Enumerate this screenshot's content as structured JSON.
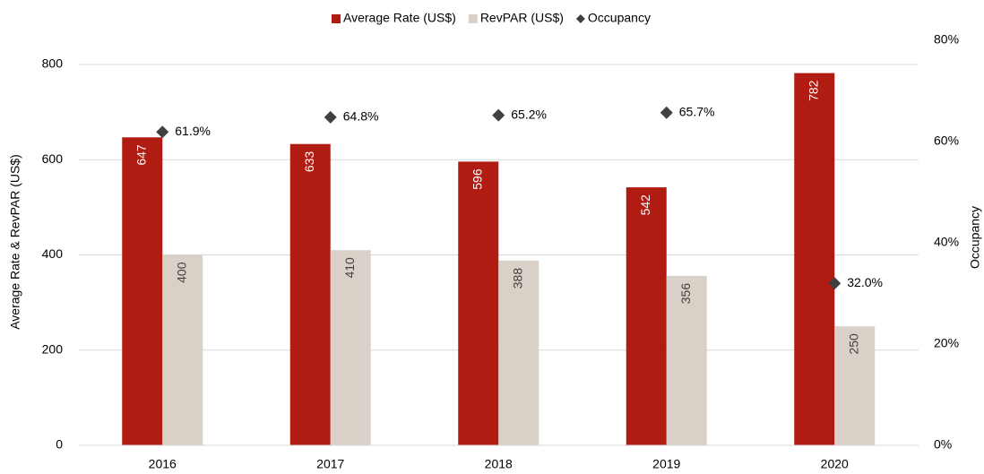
{
  "chart_data": {
    "type": "bar",
    "categories": [
      "2016",
      "2017",
      "2018",
      "2019",
      "2020"
    ],
    "series": [
      {
        "name": "Average Rate (US$)",
        "color": "#b01c12",
        "values": [
          647,
          633,
          596,
          542,
          782
        ]
      },
      {
        "name": "RevPAR (US$)",
        "color": "#d9d0c7",
        "values": [
          400,
          410,
          388,
          356,
          250
        ]
      },
      {
        "name": "Occupancy",
        "color": "#404040",
        "type": "scatter",
        "axis": "y2",
        "values": [
          61.9,
          64.8,
          65.2,
          65.7,
          32.0
        ],
        "value_labels": [
          "61.9%",
          "64.8%",
          "65.2%",
          "65.7%",
          "32.0%"
        ]
      }
    ],
    "ylabel": "Average Rate & RevPAR (US$)",
    "y2label": "Occupancy",
    "ylim": [
      0,
      800
    ],
    "yticks": [
      0,
      200,
      400,
      600,
      800
    ],
    "y2lim": [
      0,
      80
    ],
    "y2ticks": [
      {
        "value": 0,
        "label": "0%"
      },
      {
        "value": 20,
        "label": "20%"
      },
      {
        "value": 40,
        "label": "40%"
      },
      {
        "value": 60,
        "label": "60%"
      },
      {
        "value": 80,
        "label": "80%"
      }
    ],
    "grid": true,
    "legend": "top"
  }
}
